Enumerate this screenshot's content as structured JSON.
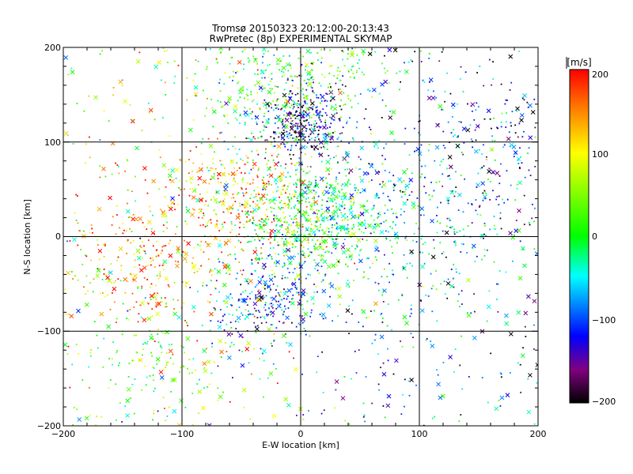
{
  "chart_data": {
    "type": "scatter",
    "title": "Tromsø 20150323 20:12:00-20:13:43",
    "subtitle": "RwPretec (8p) EXPERIMENTAL SKYMAP",
    "xlabel": "E-W location [km]",
    "ylabel": "N-S location [km]",
    "xlim": [
      -200,
      200
    ],
    "ylim": [
      -200,
      200
    ],
    "x_ticks": [
      "−200",
      "−100",
      "0",
      "100",
      "200"
    ],
    "y_ticks": [
      "−200",
      "−100",
      "0",
      "100",
      "200"
    ],
    "grid": true,
    "colorbar": {
      "label": "[m/s]",
      "range": [
        -200,
        200
      ],
      "ticks": [
        "200",
        "100",
        "0",
        "−100",
        "−200"
      ]
    },
    "marker_types": [
      "small dot",
      "x cross"
    ],
    "clusters": [
      {
        "x": 0,
        "y": 120,
        "spread": 18,
        "dominant_velocity": -150
      },
      {
        "x": 5,
        "y": 20,
        "spread": 35,
        "dominant_velocity": 0
      },
      {
        "x": -30,
        "y": -70,
        "spread": 25,
        "dominant_velocity": -100
      },
      {
        "x": -50,
        "y": 40,
        "spread": 30,
        "dominant_velocity": 150
      },
      {
        "x": -130,
        "y": -20,
        "spread": 35,
        "dominant_velocity": 150
      },
      {
        "x": 80,
        "y": 20,
        "spread": 60,
        "dominant_velocity": -60
      },
      {
        "x": 150,
        "y": 100,
        "spread": 40,
        "dominant_velocity": -130
      },
      {
        "x": -120,
        "y": -130,
        "spread": 30,
        "dominant_velocity": 20
      },
      {
        "x": 30,
        "y": 180,
        "spread": 25,
        "dominant_velocity": 10
      },
      {
        "x": -30,
        "y": 150,
        "spread": 30,
        "dominant_velocity": 0
      }
    ]
  }
}
